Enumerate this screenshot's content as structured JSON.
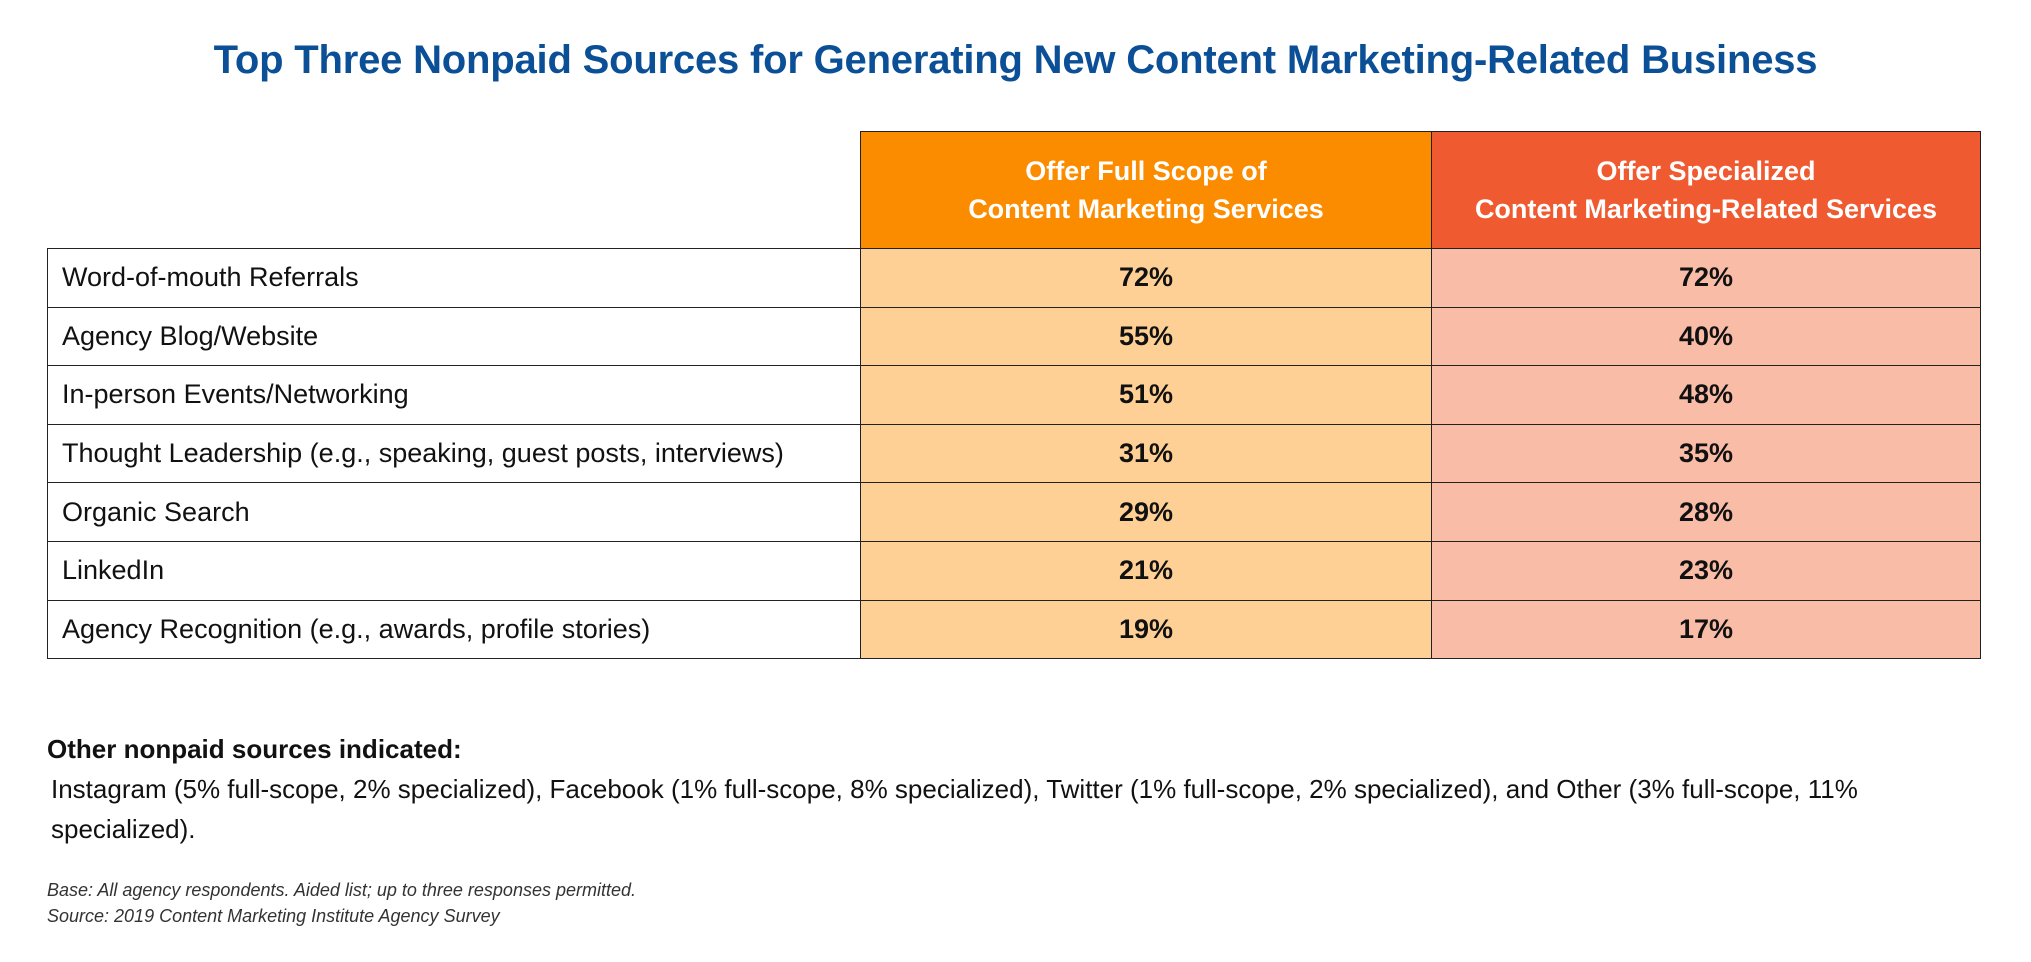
{
  "chart_data": {
    "type": "table",
    "title": "Top Three Nonpaid Sources for Generating New Content Marketing-Related Business",
    "columns": [
      {
        "line1": "Offer Full Scope of",
        "line2": "Content Marketing Services",
        "color": "#fb8c00",
        "cell_color": "#ffd095"
      },
      {
        "line1": "Offer Specialized",
        "line2": "Content Marketing-Related Services",
        "color": "#f05a30",
        "cell_color": "#f9bca6"
      }
    ],
    "rows": [
      {
        "label": "Word-of-mouth Referrals",
        "full": "72%",
        "spec": "72%"
      },
      {
        "label": "Agency Blog/Website",
        "full": "55%",
        "spec": "40%"
      },
      {
        "label": "In-person Events/Networking",
        "full": "51%",
        "spec": "48%"
      },
      {
        "label": "Thought Leadership (e.g., speaking, guest posts, interviews)",
        "full": "31%",
        "spec": "35%"
      },
      {
        "label": "Organic Search",
        "full": "29%",
        "spec": "28%"
      },
      {
        "label": "LinkedIn",
        "full": "21%",
        "spec": "23%"
      },
      {
        "label": "Agency Recognition (e.g., awards, profile stories)",
        "full": "19%",
        "spec": "17%"
      }
    ]
  },
  "other_sources": {
    "heading": "Other nonpaid sources indicated:",
    "text": "Instagram (5% full-scope, 2% specialized), Facebook (1% full-scope, 8% specialized), Twitter (1% full-scope,  2% specialized), and Other (3% full-scope, 11% specialized)."
  },
  "notes": {
    "base": "Base: All agency respondents. Aided list; up to three responses permitted.",
    "source": "Source: 2019 Content Marketing Institute Agency Survey"
  },
  "colors": {
    "title": "#0b4f96"
  }
}
